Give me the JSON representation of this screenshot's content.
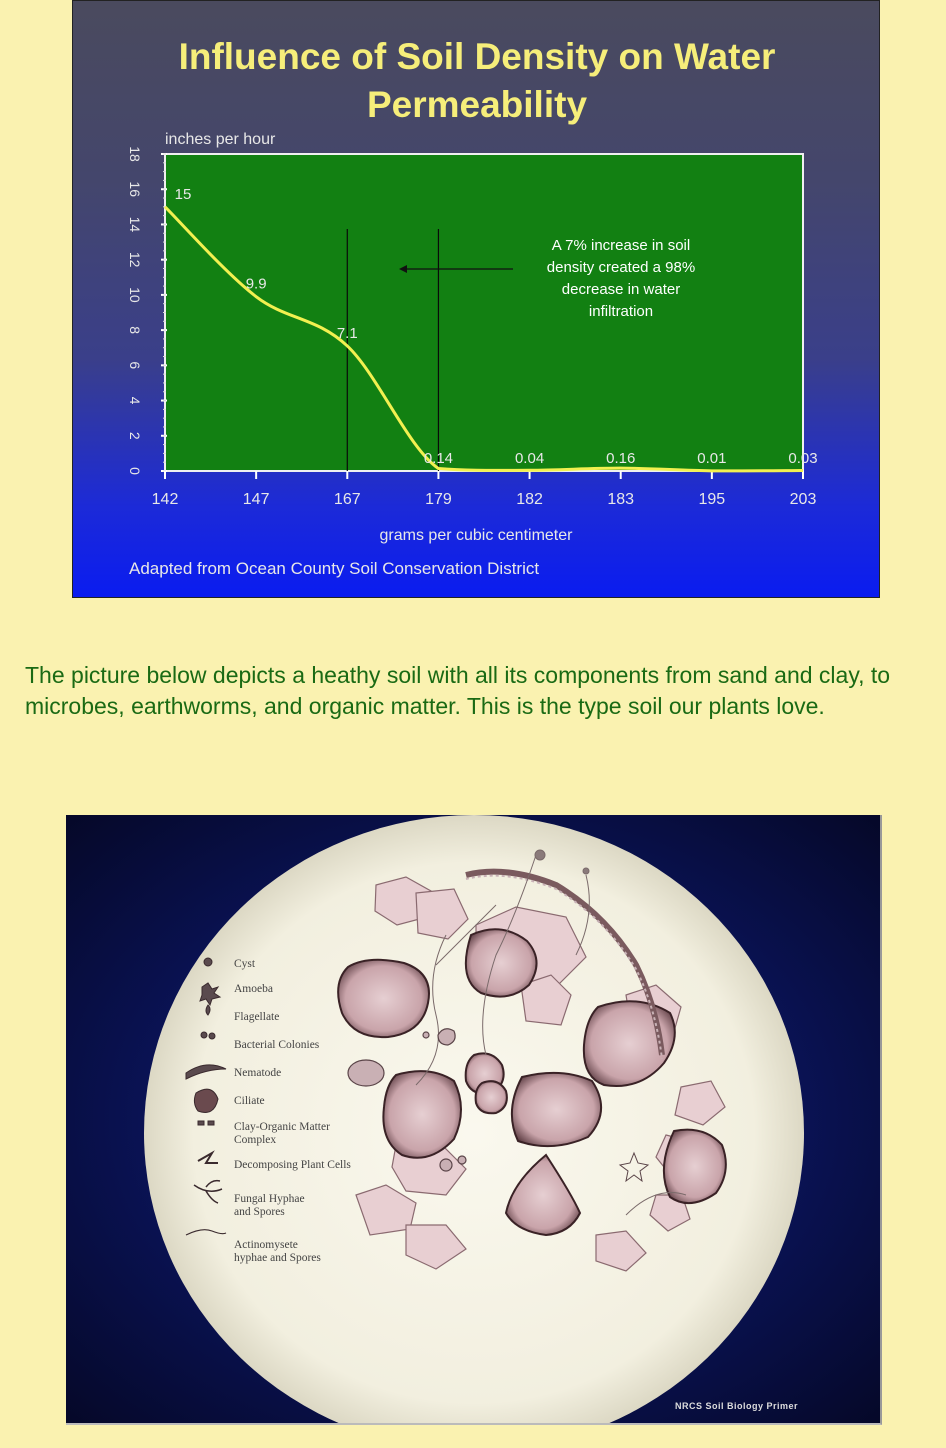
{
  "chart_data": {
    "type": "line",
    "title_line1": "Influence of Soil Density on Water",
    "title_line2": "Permeability",
    "ylabel": "inches per hour",
    "xlabel": "grams per cubic centimeter",
    "source": "Adapted from Ocean County Soil Conservation District",
    "ylim": [
      0,
      18
    ],
    "yticks": [
      "0",
      "2",
      "4",
      "6",
      "8",
      "10",
      "12",
      "14",
      "16",
      "18"
    ],
    "categories": [
      "1.42",
      "1.47",
      "1.67",
      "1.79",
      "1.82",
      "1.83",
      "1.95",
      "2.03"
    ],
    "category_labels": [
      "142",
      "147",
      "167",
      "179",
      "182",
      "183",
      "195",
      "203"
    ],
    "values": [
      15,
      9.9,
      7.1,
      0.14,
      0.04,
      0.16,
      0.01,
      0.03
    ],
    "data_labels": [
      "15",
      "9.9",
      "7.1",
      "0.14",
      "0.04",
      "0.16",
      "0.01",
      "0.03"
    ],
    "annotation": [
      "A 7% increase in soil",
      "density created a 98%",
      "decrease in water",
      "infiltration"
    ],
    "colors": {
      "plot_bg": "#128012",
      "line": "#f2f050",
      "title": "#f6ee7a",
      "text": "#e8e8e8"
    }
  },
  "caption": "The picture below depicts a heathy soil with all its components from sand and clay, to microbes, earthworms, and organic matter. This is the type soil our plants love.",
  "primer": {
    "legend": [
      {
        "label": "Cyst",
        "icon": "cyst-icon"
      },
      {
        "label": "Amoeba",
        "icon": "amoeba-icon"
      },
      {
        "label": "Flagellate",
        "icon": "flagellate-icon"
      },
      {
        "label": "Bacterial Colonies",
        "icon": "bacteria-icon"
      },
      {
        "label": "Nematode",
        "icon": "nematode-icon"
      },
      {
        "label": "Ciliate",
        "icon": "ciliate-icon"
      },
      {
        "label": "Clay-Organic Matter",
        "label2": "Complex",
        "icon": "clay-icon"
      },
      {
        "label": "Decomposing Plant Cells",
        "icon": "plant-cells-icon"
      },
      {
        "label": "Fungal Hyphae",
        "label2": "and Spores",
        "icon": "fungal-hyphae-icon"
      },
      {
        "label": "Actinomysete",
        "label2": "hyphae and Spores",
        "icon": "actinomycete-icon"
      }
    ],
    "credit": "NRCS Soil Biology Primer"
  }
}
